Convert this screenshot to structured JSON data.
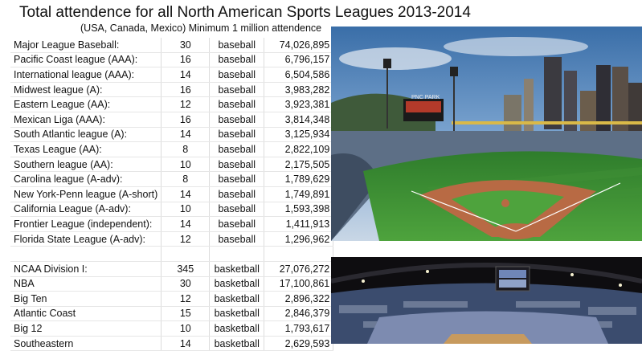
{
  "title": "Total attendence for all North American Sports Leagues 2013-2014",
  "subtitle": "(USA, Canada, Mexico) Minimum 1 million attendence",
  "baseball_rows": [
    {
      "league": "Major League Baseball:",
      "teams": "30",
      "sport": "baseball",
      "attendance": "74,026,895"
    },
    {
      "league": "Pacific Coast league (AAA):",
      "teams": "16",
      "sport": "baseball",
      "attendance": "6,796,157"
    },
    {
      "league": "International league (AAA):",
      "teams": "14",
      "sport": "baseball",
      "attendance": "6,504,586"
    },
    {
      "league": "Midwest league (A):",
      "teams": "16",
      "sport": "baseball",
      "attendance": "3,983,282"
    },
    {
      "league": "Eastern League (AA):",
      "teams": "12",
      "sport": "baseball",
      "attendance": "3,923,381"
    },
    {
      "league": "Mexican Liga (AAA):",
      "teams": "16",
      "sport": "baseball",
      "attendance": "3,814,348"
    },
    {
      "league": "South Atlantic league (A):",
      "teams": "14",
      "sport": "baseball",
      "attendance": "3,125,934"
    },
    {
      "league": "Texas League (AA):",
      "teams": "8",
      "sport": "baseball",
      "attendance": "2,822,109"
    },
    {
      "league": "Southern league (AA):",
      "teams": "10",
      "sport": "baseball",
      "attendance": "2,175,505"
    },
    {
      "league": "Carolina league (A-adv):",
      "teams": "8",
      "sport": "baseball",
      "attendance": "1,789,629"
    },
    {
      "league": "New York-Penn league (A-short)",
      "teams": "14",
      "sport": "baseball",
      "attendance": "1,749,891"
    },
    {
      "league": "California League (A-adv):",
      "teams": "10",
      "sport": "baseball",
      "attendance": "1,593,398"
    },
    {
      "league": "Frontier League (independent):",
      "teams": "14",
      "sport": "baseball",
      "attendance": "1,411,913"
    },
    {
      "league": "Florida State League (A-adv):",
      "teams": "12",
      "sport": "baseball",
      "attendance": "1,296,962"
    }
  ],
  "basketball_rows": [
    {
      "league": "NCAA Division I:",
      "teams": "345",
      "sport": "basketball",
      "attendance": "27,076,272"
    },
    {
      "league": "NBA",
      "teams": "30",
      "sport": "basketball",
      "attendance": "17,100,861"
    },
    {
      "league": "Big Ten",
      "teams": "12",
      "sport": "basketball",
      "attendance": "2,896,322"
    },
    {
      "league": "Atlantic Coast",
      "teams": "15",
      "sport": "basketball",
      "attendance": "2,846,379"
    },
    {
      "league": "Big 12",
      "teams": "10",
      "sport": "basketball",
      "attendance": "1,793,617"
    },
    {
      "league": "Southeastern",
      "teams": "14",
      "sport": "basketball",
      "attendance": "2,629,593"
    }
  ],
  "photos": {
    "stadium_text": "PNC PARK",
    "icons": [
      "baseball-stadium-photo",
      "basketball-arena-photo"
    ]
  }
}
